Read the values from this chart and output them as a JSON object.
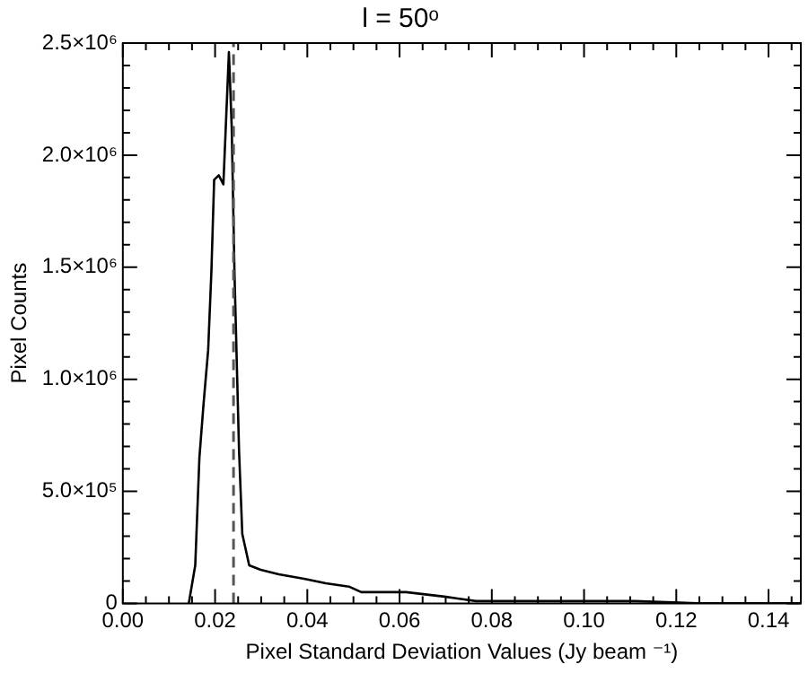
{
  "chart_data": {
    "type": "line",
    "title": "l = 50ᵒ",
    "xlabel": "Pixel Standard Deviation Values (Jy beam ⁻¹)",
    "ylabel": "Pixel Counts",
    "series": [
      {
        "color": "#000000",
        "x": [
          0.0143,
          0.0157,
          0.0166,
          0.0175,
          0.0185,
          0.0192,
          0.0198,
          0.0208,
          0.0218,
          0.023,
          0.0236,
          0.0242,
          0.0252,
          0.0259,
          0.0274,
          0.0299,
          0.0338,
          0.0393,
          0.044,
          0.049,
          0.0517,
          0.0614,
          0.0697,
          0.0766,
          0.0903,
          0.111,
          0.1248,
          0.147
        ],
        "values": [
          0,
          170000,
          650000,
          890000,
          1130000,
          1480000,
          1890000,
          1910000,
          1870000,
          2460000,
          2130000,
          1480000,
          680000,
          310000,
          170000,
          150000,
          130000,
          110000,
          90000,
          75000,
          50000,
          50000,
          30000,
          10000,
          10000,
          10000,
          0,
          0
        ]
      }
    ],
    "xlim": [
      0,
      0.147
    ],
    "xticks": [
      {
        "value": 0,
        "label": "0.00"
      },
      {
        "value": 0.005,
        "label": null
      },
      {
        "value": 0.01,
        "label": null
      },
      {
        "value": 0.015,
        "label": null
      },
      {
        "value": 0.02,
        "label": "0.02"
      },
      {
        "value": 0.025,
        "label": null
      },
      {
        "value": 0.03,
        "label": null
      },
      {
        "value": 0.035,
        "label": null
      },
      {
        "value": 0.04,
        "label": "0.04"
      },
      {
        "value": 0.045,
        "label": null
      },
      {
        "value": 0.05,
        "label": null
      },
      {
        "value": 0.055,
        "label": null
      },
      {
        "value": 0.06,
        "label": "0.06"
      },
      {
        "value": 0.065,
        "label": null
      },
      {
        "value": 0.07,
        "label": null
      },
      {
        "value": 0.075,
        "label": null
      },
      {
        "value": 0.08,
        "label": "0.08"
      },
      {
        "value": 0.085,
        "label": null
      },
      {
        "value": 0.09,
        "label": null
      },
      {
        "value": 0.095,
        "label": null
      },
      {
        "value": 0.1,
        "label": "0.10"
      },
      {
        "value": 0.105,
        "label": null
      },
      {
        "value": 0.11,
        "label": null
      },
      {
        "value": 0.115,
        "label": null
      },
      {
        "value": 0.12,
        "label": "0.12"
      },
      {
        "value": 0.125,
        "label": null
      },
      {
        "value": 0.13,
        "label": null
      },
      {
        "value": 0.135,
        "label": null
      },
      {
        "value": 0.14,
        "label": "0.14"
      },
      {
        "value": 0.145,
        "label": null
      }
    ],
    "ylim": [
      0,
      2500000
    ],
    "yticks": [
      0,
      {
        "value": 100000,
        "label": null
      },
      {
        "value": 200000,
        "label": null
      },
      {
        "value": 300000,
        "label": null
      },
      {
        "value": 400000,
        "label": null
      },
      {
        "value": 500000,
        "label": "5.0×10⁵"
      },
      {
        "value": 600000,
        "label": null
      },
      {
        "value": 700000,
        "label": null
      },
      {
        "value": 800000,
        "label": null
      },
      {
        "value": 900000,
        "label": null
      },
      {
        "value": 1000000,
        "label": "1.0×10⁶"
      },
      {
        "value": 1100000,
        "label": null
      },
      {
        "value": 1200000,
        "label": null
      },
      {
        "value": 1300000,
        "label": null
      },
      {
        "value": 1400000,
        "label": null
      },
      {
        "value": 1500000,
        "label": "1.5×10⁶"
      },
      {
        "value": 1600000,
        "label": null
      },
      {
        "value": 1700000,
        "label": null
      },
      {
        "value": 1800000,
        "label": null
      },
      {
        "value": 1900000,
        "label": null
      },
      {
        "value": 2000000,
        "label": "2.0×10⁶"
      },
      {
        "value": 2100000,
        "label": null
      },
      {
        "value": 2200000,
        "label": null
      },
      {
        "value": 2300000,
        "label": null
      },
      {
        "value": 2400000,
        "label": null
      },
      {
        "value": 2500000,
        "label": "2.5×10⁶"
      }
    ],
    "ref_lines": [
      {
        "axis": "x",
        "value": 0.024,
        "color": "#555555",
        "line_style": "dashed"
      }
    ],
    "grid": false,
    "legend": false,
    "marker": "none",
    "line_style": "solid"
  }
}
